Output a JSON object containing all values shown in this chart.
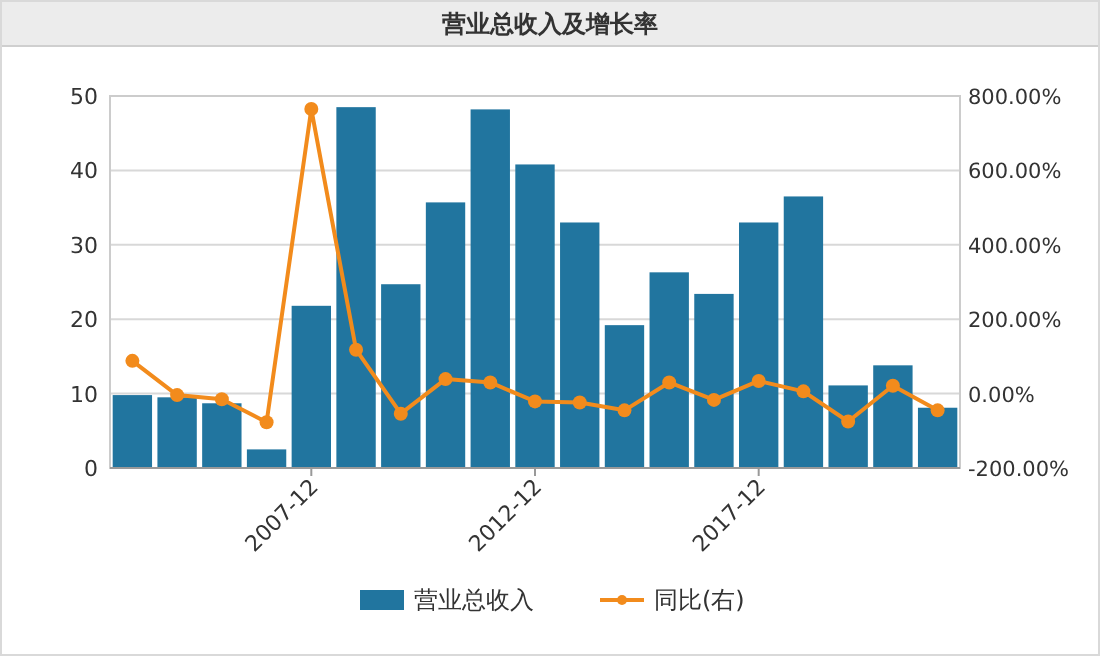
{
  "chart_data": {
    "type": "bar",
    "title": "营业总收入及增长率",
    "categories": [
      null,
      null,
      null,
      null,
      "2007-12",
      null,
      null,
      null,
      null,
      "2012-12",
      null,
      null,
      null,
      null,
      "2017-12",
      null,
      null,
      null,
      null
    ],
    "series": [
      {
        "name": "营业总收入",
        "color": "#21759f",
        "values": [
          9.8,
          9.5,
          8.7,
          2.5,
          21.8,
          48.5,
          24.7,
          35.7,
          48.2,
          40.8,
          33,
          19.2,
          26.3,
          23.4,
          33,
          36.5,
          11.1,
          13.8,
          8.1
        ]
      },
      {
        "name": "同比(右)",
        "type": "line",
        "axis": "y2",
        "color": "#f28b1c",
        "values": [
          88,
          -4,
          -15,
          -77,
          765,
          118,
          -54,
          39,
          30,
          -21,
          -24,
          -45,
          30,
          -17,
          34,
          6,
          -75,
          21,
          -45
        ]
      }
    ],
    "ylim": [
      0,
      50
    ],
    "yticks": [
      0,
      10,
      20,
      30,
      40,
      50
    ],
    "y2lim": [
      -200,
      800
    ],
    "y2ticks": [
      {
        "value": -200,
        "label": "-200.00%"
      },
      {
        "value": 0,
        "label": "0.00%"
      },
      {
        "value": 200,
        "label": "200.00%"
      },
      {
        "value": 400,
        "label": "400.00%"
      },
      {
        "value": 600,
        "label": "600.00%"
      },
      {
        "value": 800,
        "label": "800.00%"
      }
    ],
    "grid": "y",
    "legend": "bottom",
    "marker": "circle",
    "line_style": "solid"
  }
}
